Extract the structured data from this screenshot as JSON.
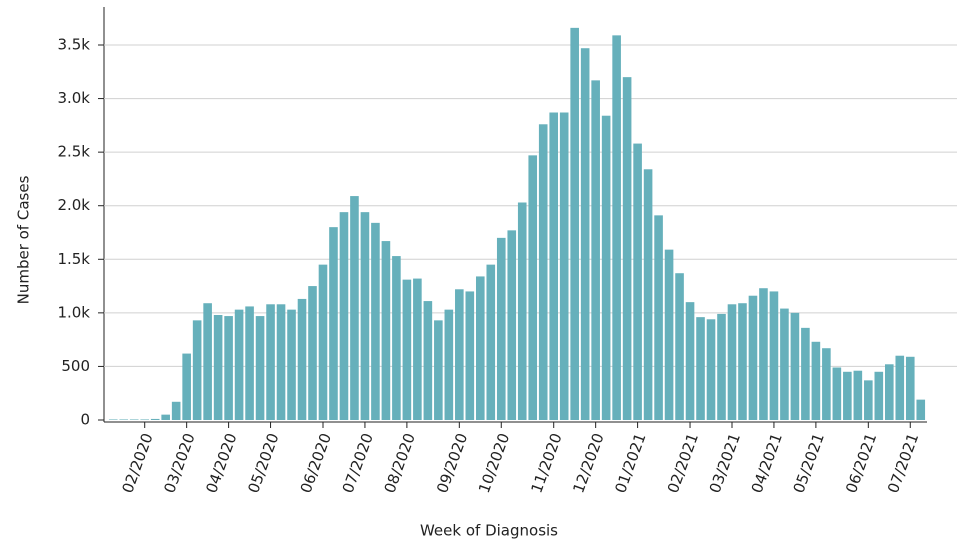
{
  "chart_data": {
    "type": "bar",
    "x_label": "Week of Diagnosis",
    "y_label": "Number of Cases",
    "color": "#66b0bb",
    "grid": true,
    "ylim": [
      0,
      3850
    ],
    "yticks": [
      0,
      500,
      {
        "value": 1000,
        "label": "1.0k"
      },
      {
        "value": 1500,
        "label": "1.5k"
      },
      {
        "value": 2000,
        "label": "2.0k"
      },
      {
        "value": 2500,
        "label": "2.5k"
      },
      {
        "value": 3000,
        "label": "3.0k"
      },
      {
        "value": 3500,
        "label": "3.5k"
      }
    ],
    "categories": [
      null,
      null,
      null,
      "02/2020",
      null,
      null,
      null,
      "03/2020",
      null,
      null,
      null,
      "04/2020",
      null,
      null,
      null,
      "05/2020",
      null,
      null,
      null,
      null,
      "06/2020",
      null,
      null,
      null,
      "07/2020",
      null,
      null,
      null,
      "08/2020",
      null,
      null,
      null,
      null,
      "09/2020",
      null,
      null,
      null,
      "10/2020",
      null,
      null,
      null,
      null,
      "11/2020",
      null,
      null,
      null,
      "12/2020",
      null,
      null,
      null,
      "01/2021",
      null,
      null,
      null,
      null,
      "02/2021",
      null,
      null,
      null,
      "03/2021",
      null,
      null,
      null,
      "04/2021",
      null,
      null,
      null,
      "05/2021",
      null,
      null,
      null,
      null,
      "06/2021",
      null,
      null,
      null,
      "07/2021",
      null
    ],
    "values": [
      5,
      5,
      5,
      5,
      10,
      50,
      170,
      620,
      930,
      1090,
      980,
      970,
      1030,
      1060,
      970,
      1080,
      1080,
      1030,
      1130,
      1250,
      1450,
      1800,
      1940,
      2090,
      1940,
      1840,
      1670,
      1530,
      1310,
      1320,
      1110,
      930,
      1030,
      1220,
      1200,
      1340,
      1450,
      1700,
      1770,
      2030,
      2470,
      2760,
      2870,
      2870,
      3660,
      3470,
      3170,
      2840,
      3590,
      3200,
      2580,
      2340,
      1910,
      1590,
      1370,
      1100,
      960,
      940,
      990,
      1080,
      1090,
      1160,
      1230,
      1200,
      1040,
      1000,
      860,
      730,
      670,
      490,
      450,
      460,
      370,
      450,
      520,
      600,
      590,
      190
    ]
  }
}
